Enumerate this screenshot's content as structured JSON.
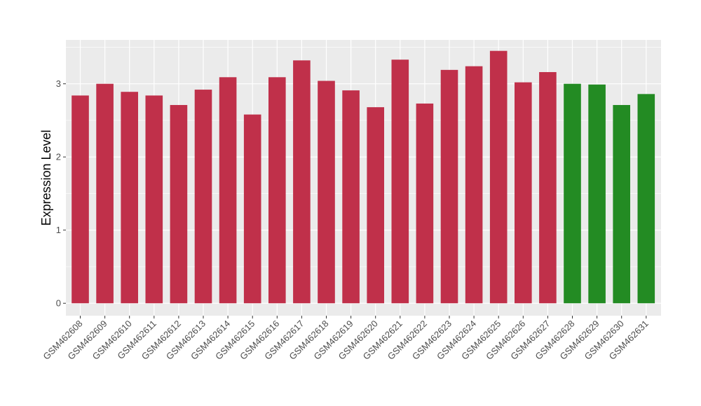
{
  "chart_data": {
    "type": "bar",
    "title": "",
    "xlabel": "",
    "ylabel": "Expression Level",
    "ylim": [
      -0.17,
      3.6
    ],
    "yticks": [
      0,
      1,
      2,
      3
    ],
    "grid": true,
    "legend": "none",
    "categories": [
      "GSM462608",
      "GSM462609",
      "GSM462610",
      "GSM462611",
      "GSM462612",
      "GSM462613",
      "GSM462614",
      "GSM462615",
      "GSM462616",
      "GSM462617",
      "GSM462618",
      "GSM462619",
      "GSM462620",
      "GSM462621",
      "GSM462622",
      "GSM462623",
      "GSM462624",
      "GSM462625",
      "GSM462626",
      "GSM462627",
      "GSM462628",
      "GSM462629",
      "GSM462630",
      "GSM462631"
    ],
    "values": [
      2.84,
      3.0,
      2.89,
      2.84,
      2.71,
      2.92,
      3.09,
      2.58,
      3.09,
      3.32,
      3.04,
      2.91,
      2.68,
      3.33,
      2.73,
      3.19,
      3.24,
      3.45,
      3.02,
      3.16,
      3.0,
      2.99,
      2.71,
      2.86
    ],
    "group_index": [
      0,
      0,
      0,
      0,
      0,
      0,
      0,
      0,
      0,
      0,
      0,
      0,
      0,
      0,
      0,
      0,
      0,
      0,
      0,
      0,
      1,
      1,
      1,
      1
    ],
    "colors": [
      "#c0304a",
      "#238b23"
    ],
    "panel_background": "#ebebeb",
    "grid_color": "#ffffff"
  }
}
